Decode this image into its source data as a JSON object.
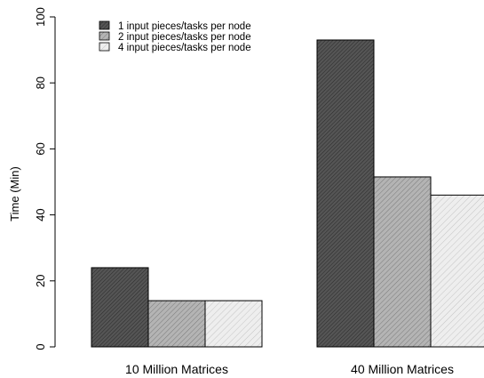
{
  "chart_data": {
    "type": "bar",
    "title": "",
    "xlabel": "",
    "ylabel": "Time (Min)",
    "ylim": [
      0,
      100
    ],
    "yticks": [
      0,
      20,
      40,
      60,
      80,
      100
    ],
    "categories": [
      "10 Million Matrices",
      "40 Million Matrices"
    ],
    "series": [
      {
        "name": "1 input pieces/tasks per node",
        "values": [
          24,
          93
        ],
        "fill": "#555555",
        "pattern": "dense-hatch"
      },
      {
        "name": "2 input pieces/tasks per node",
        "values": [
          14,
          51.5
        ],
        "fill": "#b4b4b4",
        "pattern": "medium-hatch"
      },
      {
        "name": "4 input pieces/tasks per node",
        "values": [
          14,
          46
        ],
        "fill": "#eeeeee",
        "pattern": "light-hatch"
      }
    ],
    "legend": "top-left",
    "grid": false
  }
}
